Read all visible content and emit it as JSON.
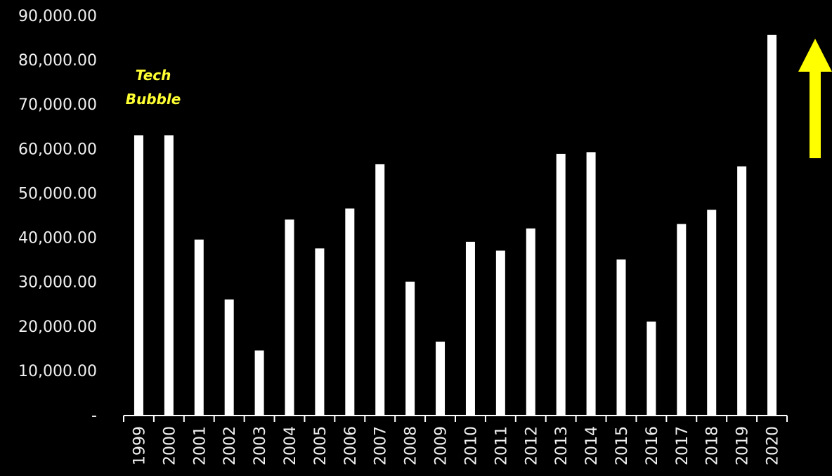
{
  "chart_data": {
    "type": "bar",
    "categories": [
      "1999",
      "2000",
      "2001",
      "2002",
      "2003",
      "2004",
      "2005",
      "2006",
      "2007",
      "2008",
      "2009",
      "2010",
      "2011",
      "2012",
      "2013",
      "2014",
      "2015",
      "2016",
      "2017",
      "2018",
      "2019",
      "2020"
    ],
    "values": [
      63000,
      63000,
      39500,
      26000,
      14500,
      44000,
      37500,
      46500,
      56500,
      30000,
      16500,
      39000,
      37000,
      42000,
      58800,
      59200,
      35000,
      21000,
      43000,
      46200,
      56000,
      85600
    ],
    "ylim": [
      0,
      90000
    ],
    "yticks": [
      {
        "value": 0,
        "label": "-"
      },
      {
        "value": 10000,
        "label": "10,000.00"
      },
      {
        "value": 20000,
        "label": "20,000.00"
      },
      {
        "value": 30000,
        "label": "30,000.00"
      },
      {
        "value": 40000,
        "label": "40,000.00"
      },
      {
        "value": 50000,
        "label": "50,000.00"
      },
      {
        "value": 60000,
        "label": "60,000.00"
      },
      {
        "value": 70000,
        "label": "70,000.00"
      },
      {
        "value": 80000,
        "label": "80,000.00"
      },
      {
        "value": 90000,
        "label": "90,000.00"
      }
    ],
    "grid": false,
    "annotations": [
      {
        "text_lines": [
          "Tech",
          "Bubble"
        ],
        "color": "#ffff33",
        "near_category": "1999"
      }
    ],
    "arrow": {
      "direction": "up",
      "color": "#ffff00",
      "near_category": "2020"
    },
    "colors": {
      "background": "#000000",
      "bars": "#ffffff",
      "text": "#f0f0f0",
      "axis": "#ffffff"
    }
  }
}
